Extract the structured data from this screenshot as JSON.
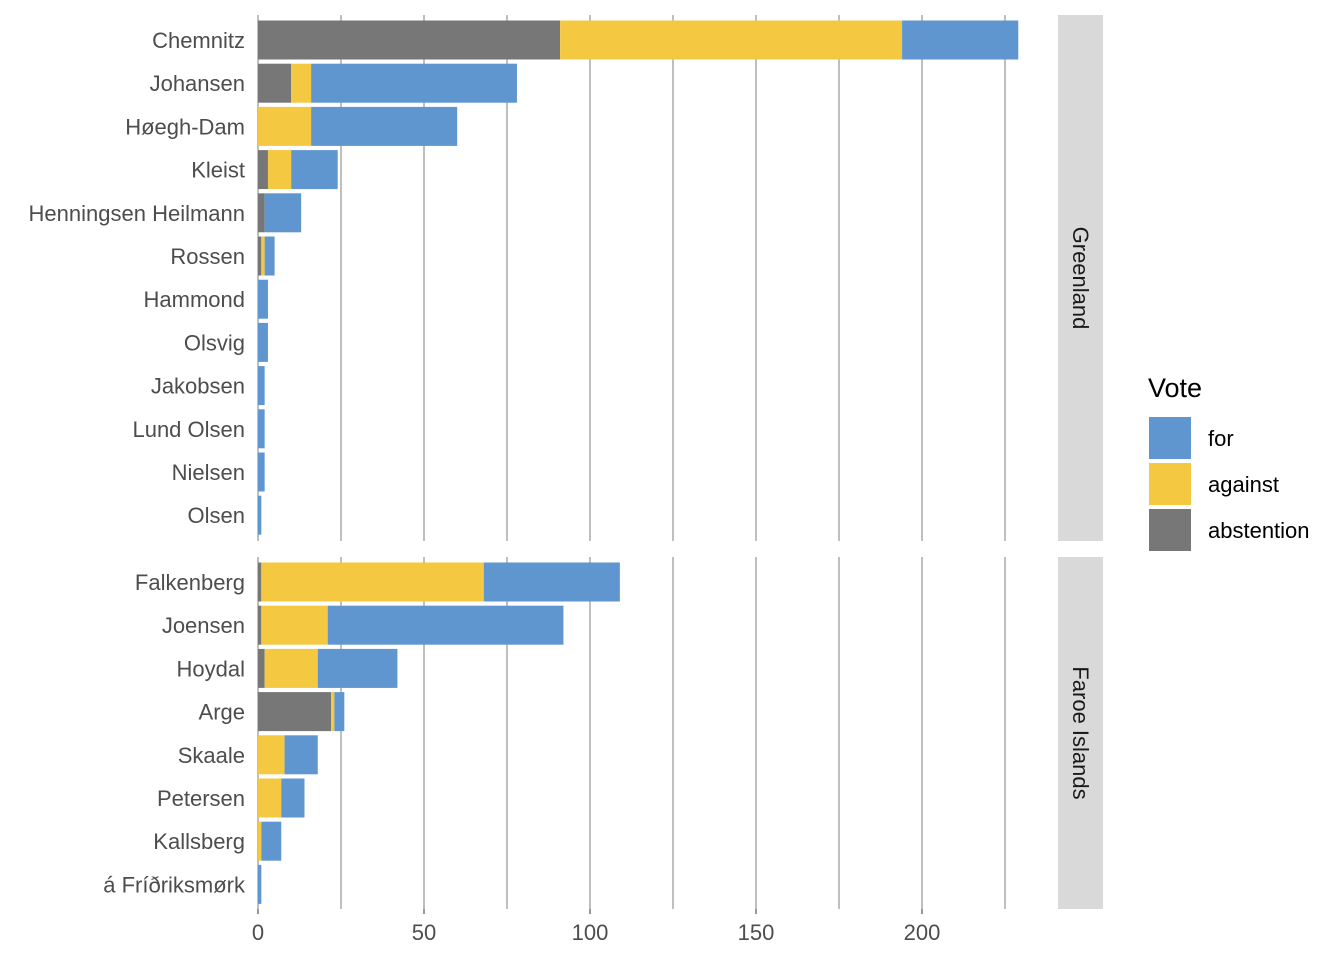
{
  "chart_data": {
    "type": "bar",
    "orientation": "horizontal",
    "stacked": true,
    "xlabel": "",
    "ylabel": "",
    "xlim": [
      0,
      230
    ],
    "x_ticks": [
      0,
      50,
      100,
      150,
      200
    ],
    "grid": "vertical-major-and-minor",
    "legend": {
      "title": "Vote",
      "placement": "right",
      "entries": [
        {
          "key": "for",
          "label": "for",
          "color": "#5f96d0"
        },
        {
          "key": "against",
          "label": "against",
          "color": "#f5c842"
        },
        {
          "key": "abstention",
          "label": "abstention",
          "color": "#777777"
        }
      ]
    },
    "stack_order": [
      "abstention",
      "against",
      "for"
    ],
    "panels": [
      {
        "label": "Greenland",
        "rows": [
          {
            "name": "Chemnitz",
            "abstention": 91,
            "against": 103,
            "for": 35
          },
          {
            "name": "Johansen",
            "abstention": 10,
            "against": 6,
            "for": 62
          },
          {
            "name": "Høegh-Dam",
            "abstention": 0,
            "against": 16,
            "for": 44
          },
          {
            "name": "Kleist",
            "abstention": 3,
            "against": 7,
            "for": 14
          },
          {
            "name": "Henningsen Heilmann",
            "abstention": 2,
            "against": 0,
            "for": 11
          },
          {
            "name": "Rossen",
            "abstention": 1,
            "against": 1,
            "for": 3
          },
          {
            "name": "Hammond",
            "abstention": 0,
            "against": 0,
            "for": 3
          },
          {
            "name": "Olsvig",
            "abstention": 0,
            "against": 0,
            "for": 3
          },
          {
            "name": "Jakobsen",
            "abstention": 0,
            "against": 0,
            "for": 2
          },
          {
            "name": "Lund Olsen",
            "abstention": 0,
            "against": 0,
            "for": 2
          },
          {
            "name": "Nielsen",
            "abstention": 0,
            "against": 0,
            "for": 2
          },
          {
            "name": "Olsen",
            "abstention": 0,
            "against": 0,
            "for": 1
          }
        ]
      },
      {
        "label": "Faroe Islands",
        "rows": [
          {
            "name": "Falkenberg",
            "abstention": 1,
            "against": 67,
            "for": 41
          },
          {
            "name": "Joensen",
            "abstention": 1,
            "against": 20,
            "for": 71
          },
          {
            "name": "Hoydal",
            "abstention": 2,
            "against": 16,
            "for": 24
          },
          {
            "name": "Arge",
            "abstention": 22,
            "against": 1,
            "for": 3
          },
          {
            "name": "Skaale",
            "abstention": 0,
            "against": 8,
            "for": 10
          },
          {
            "name": "Petersen",
            "abstention": 0,
            "against": 7,
            "for": 7
          },
          {
            "name": "Kallsberg",
            "abstention": 0,
            "against": 1,
            "for": 6
          },
          {
            "name": "á Fríðriksmørk",
            "abstention": 0,
            "against": 0,
            "for": 1
          }
        ]
      }
    ]
  }
}
